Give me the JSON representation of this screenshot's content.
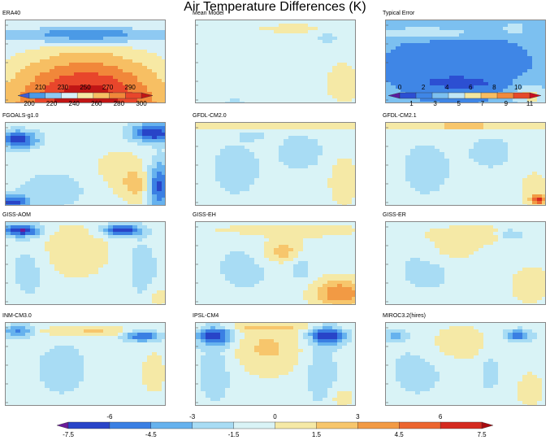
{
  "title": "Air Temperature Differences (K)",
  "panels": [
    {
      "title": "ERA40",
      "kind": "era"
    },
    {
      "title": "Mean Model",
      "kind": "mean"
    },
    {
      "title": "Typical Error",
      "kind": "typical"
    },
    {
      "title": "FGOALS-g1.0",
      "kind": "fgoals"
    },
    {
      "title": "GFDL-CM2.0",
      "kind": "gfdl0"
    },
    {
      "title": "GFDL-CM2.1",
      "kind": "gfdl1"
    },
    {
      "title": "GISS-AOM",
      "kind": "aom"
    },
    {
      "title": "GISS-EH",
      "kind": "eh"
    },
    {
      "title": "GISS-ER",
      "kind": "er"
    },
    {
      "title": "INM-CM3.0",
      "kind": "inm"
    },
    {
      "title": "IPSL-CM4",
      "kind": "ipsl"
    },
    {
      "title": "MIROC3.2(hires)",
      "kind": "miroc"
    }
  ],
  "colorbars": {
    "era": {
      "levels": [
        200,
        220,
        240,
        260,
        280,
        300
      ],
      "minor_levels": [
        210,
        230,
        250,
        270,
        290
      ],
      "colors": [
        "#3b5bd6",
        "#4b9ae6",
        "#8ec9f2",
        "#d8f0f7",
        "#f7e9a4",
        "#f7bf63",
        "#f1873a",
        "#e8462b",
        "#c01515"
      ]
    },
    "typical": {
      "levels": [
        1,
        3,
        5,
        7,
        9,
        11
      ],
      "minor_levels": [
        0,
        2,
        4,
        6,
        8,
        10
      ],
      "colors": [
        "#5a1aa0",
        "#2c4fd2",
        "#3f86e6",
        "#7cc0f0",
        "#bfe6f6",
        "#f3e7a0",
        "#f7bd62",
        "#f08a3d",
        "#e54a2a",
        "#c8101e"
      ]
    },
    "diff": {
      "levels": [
        -7.5,
        -4.5,
        -1.5,
        1.5,
        4.5,
        7.5
      ],
      "minor_levels": [
        -6,
        -3,
        0,
        3,
        6
      ],
      "colors": [
        "#6a1a9a",
        "#2844c8",
        "#3a7fe3",
        "#66b2ee",
        "#a8dcf4",
        "#d9f3f6",
        "#f5e9a6",
        "#f7c66c",
        "#f29a44",
        "#ec6630",
        "#d42a1f",
        "#a80a10"
      ]
    }
  },
  "color_scales": {
    "era": [
      [
        0,
        "#2a2fb0"
      ],
      [
        0.15,
        "#3b5bd6"
      ],
      [
        0.3,
        "#4b9ae6"
      ],
      [
        0.45,
        "#8ec9f2"
      ],
      [
        0.55,
        "#d8f0f7"
      ],
      [
        0.65,
        "#f7e9a4"
      ],
      [
        0.75,
        "#f7bf63"
      ],
      [
        0.85,
        "#f1873a"
      ],
      [
        0.93,
        "#e8462b"
      ],
      [
        1,
        "#c01515"
      ]
    ],
    "typical": [
      [
        0,
        "#5a1aa0"
      ],
      [
        0.12,
        "#2c4fd2"
      ],
      [
        0.3,
        "#3f86e6"
      ],
      [
        0.45,
        "#7cc0f0"
      ],
      [
        0.6,
        "#bfe6f6"
      ],
      [
        0.72,
        "#f3e7a0"
      ],
      [
        0.82,
        "#f7bd62"
      ],
      [
        0.9,
        "#f08a3d"
      ],
      [
        0.96,
        "#e54a2a"
      ],
      [
        1,
        "#c8101e"
      ]
    ],
    "diff": [
      [
        0,
        "#6a1a9a"
      ],
      [
        0.12,
        "#2844c8"
      ],
      [
        0.25,
        "#3a7fe3"
      ],
      [
        0.37,
        "#66b2ee"
      ],
      [
        0.45,
        "#a8dcf4"
      ],
      [
        0.5,
        "#d9f3f6"
      ],
      [
        0.57,
        "#f5e9a6"
      ],
      [
        0.66,
        "#f7c66c"
      ],
      [
        0.76,
        "#f29a44"
      ],
      [
        0.86,
        "#ec6630"
      ],
      [
        0.94,
        "#d42a1f"
      ],
      [
        1,
        "#a80a10"
      ]
    ]
  },
  "chart_data": {
    "type": "heatmap",
    "title": "Air Temperature Differences (K)",
    "description_units": "K",
    "panel_titles": [
      "ERA40",
      "Mean Model",
      "Typical Error",
      "FGOALS-g1.0",
      "GFDL-CM2.0",
      "GFDL-CM2.1",
      "GISS-AOM",
      "GISS-EH",
      "GISS-ER",
      "INM-CM3.0",
      "IPSL-CM4",
      "MIROC3.2(hires)"
    ],
    "colorbar_era40": [
      200,
      220,
      240,
      260,
      280,
      300
    ],
    "colorbar_era40_minor": [
      210,
      230,
      250,
      270,
      290
    ],
    "colorbar_typical_error": [
      1,
      3,
      5,
      7,
      9,
      11
    ],
    "colorbar_typical_error_minor": [
      0,
      2,
      4,
      6,
      8,
      10
    ],
    "colorbar_differences": [
      -7.5,
      -4.5,
      -1.5,
      1.5,
      4.5,
      7.5
    ],
    "colorbar_differences_minor": [
      -6,
      -3,
      0,
      3,
      6
    ]
  }
}
